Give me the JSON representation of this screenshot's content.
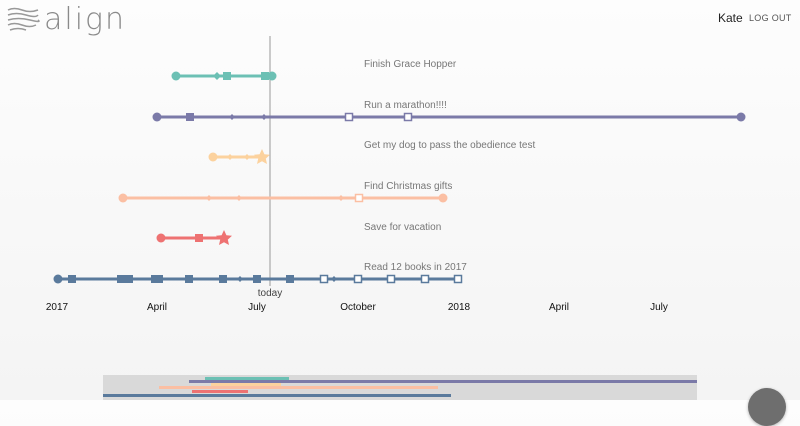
{
  "app": {
    "logo_text": "align",
    "logo_icon": "menu-lines-icon",
    "user_name": "Kate",
    "logout_label": "LOG OUT"
  },
  "timeline": {
    "today_label": "today",
    "axis_labels": [
      "2017",
      "April",
      "July",
      "October",
      "2018",
      "April",
      "July"
    ],
    "goals": [
      {
        "label": "Finish Grace Hopper",
        "color": "#6cc0b4"
      },
      {
        "label": "Run a marathon!!!!",
        "color": "#7b7aa8"
      },
      {
        "label": "Get my dog to pass the obedience test",
        "color": "#fcd29e"
      },
      {
        "label": "Find Christmas gifts",
        "color": "#fbbfa3"
      },
      {
        "label": "Save for vacation",
        "color": "#ee7272"
      },
      {
        "label": "Read 12 books in 2017",
        "color": "#5a7a9c"
      }
    ]
  }
}
